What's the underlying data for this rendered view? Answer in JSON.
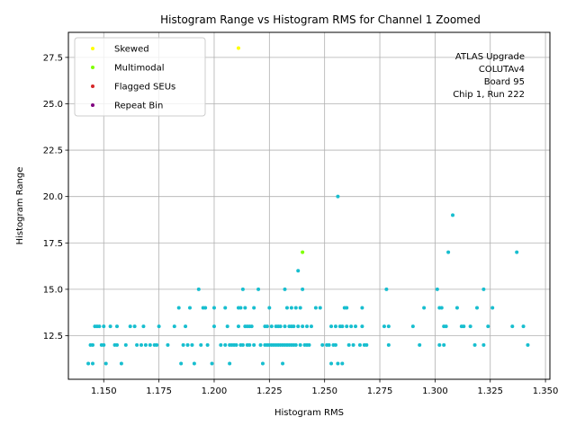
{
  "chart_data": {
    "type": "scatter",
    "title": "Histogram Range vs Histogram RMS for Channel 1 Zoomed",
    "xlabel": "Histogram RMS",
    "ylabel": "Histogram Range",
    "xlim": [
      1.134,
      1.352
    ],
    "ylim": [
      10.15,
      28.85
    ],
    "xticks": [
      "1.150",
      "1.175",
      "1.200",
      "1.225",
      "1.250",
      "1.275",
      "1.300",
      "1.325",
      "1.350"
    ],
    "xtick_values": [
      1.15,
      1.175,
      1.2,
      1.225,
      1.25,
      1.275,
      1.3,
      1.325,
      1.35
    ],
    "yticks": [
      "12.5",
      "15.0",
      "17.5",
      "20.0",
      "22.5",
      "25.0",
      "27.5"
    ],
    "ytick_values": [
      12.5,
      15.0,
      17.5,
      20.0,
      22.5,
      25.0,
      27.5
    ],
    "grid": true,
    "legend_position": "top-left",
    "annotation": [
      "ATLAS Upgrade",
      "COLUTAv4",
      "Board 95",
      "Chip 1, Run 222"
    ],
    "colors": {
      "main": "#17becf",
      "skewed": "#ffff00",
      "multimodal": "#7fff00",
      "flagged": "#d62728",
      "repeat": "#800080"
    },
    "series": [
      {
        "name": "",
        "color": "#17becf",
        "points": [
          [
            1.143,
            11
          ],
          [
            1.145,
            11
          ],
          [
            1.144,
            12
          ],
          [
            1.145,
            12
          ],
          [
            1.146,
            13
          ],
          [
            1.147,
            13
          ],
          [
            1.148,
            13
          ],
          [
            1.149,
            12
          ],
          [
            1.15,
            12
          ],
          [
            1.15,
            13
          ],
          [
            1.151,
            11
          ],
          [
            1.153,
            13
          ],
          [
            1.155,
            12
          ],
          [
            1.156,
            12
          ],
          [
            1.156,
            13
          ],
          [
            1.158,
            11
          ],
          [
            1.16,
            12
          ],
          [
            1.162,
            13
          ],
          [
            1.164,
            13
          ],
          [
            1.165,
            12
          ],
          [
            1.167,
            12
          ],
          [
            1.168,
            13
          ],
          [
            1.169,
            12
          ],
          [
            1.171,
            12
          ],
          [
            1.173,
            12
          ],
          [
            1.174,
            12
          ],
          [
            1.175,
            13
          ],
          [
            1.179,
            12
          ],
          [
            1.182,
            13
          ],
          [
            1.184,
            14
          ],
          [
            1.185,
            11
          ],
          [
            1.186,
            12
          ],
          [
            1.187,
            13
          ],
          [
            1.188,
            12
          ],
          [
            1.189,
            14
          ],
          [
            1.19,
            12
          ],
          [
            1.191,
            11
          ],
          [
            1.193,
            15
          ],
          [
            1.194,
            12
          ],
          [
            1.195,
            14
          ],
          [
            1.196,
            14
          ],
          [
            1.197,
            12
          ],
          [
            1.199,
            11
          ],
          [
            1.2,
            13
          ],
          [
            1.2,
            14
          ],
          [
            1.203,
            12
          ],
          [
            1.205,
            14
          ],
          [
            1.205,
            12
          ],
          [
            1.206,
            13
          ],
          [
            1.207,
            12
          ],
          [
            1.207,
            11
          ],
          [
            1.208,
            12
          ],
          [
            1.209,
            12
          ],
          [
            1.21,
            12
          ],
          [
            1.211,
            13
          ],
          [
            1.211,
            14
          ],
          [
            1.212,
            12
          ],
          [
            1.212,
            14
          ],
          [
            1.213,
            15
          ],
          [
            1.213,
            12
          ],
          [
            1.214,
            13
          ],
          [
            1.214,
            14
          ],
          [
            1.215,
            12
          ],
          [
            1.215,
            13
          ],
          [
            1.216,
            13
          ],
          [
            1.216,
            12
          ],
          [
            1.217,
            13
          ],
          [
            1.218,
            12
          ],
          [
            1.218,
            14
          ],
          [
            1.22,
            15
          ],
          [
            1.221,
            12
          ],
          [
            1.222,
            11
          ],
          [
            1.223,
            13
          ],
          [
            1.223,
            12
          ],
          [
            1.224,
            13
          ],
          [
            1.224,
            12
          ],
          [
            1.225,
            14
          ],
          [
            1.225,
            12
          ],
          [
            1.226,
            13
          ],
          [
            1.226,
            12
          ],
          [
            1.227,
            12
          ],
          [
            1.228,
            13
          ],
          [
            1.228,
            12
          ],
          [
            1.229,
            13
          ],
          [
            1.229,
            12
          ],
          [
            1.23,
            13
          ],
          [
            1.23,
            12
          ],
          [
            1.231,
            12
          ],
          [
            1.231,
            11
          ],
          [
            1.232,
            15
          ],
          [
            1.232,
            13
          ],
          [
            1.232,
            12
          ],
          [
            1.233,
            14
          ],
          [
            1.233,
            12
          ],
          [
            1.234,
            13
          ],
          [
            1.234,
            12
          ],
          [
            1.235,
            14
          ],
          [
            1.235,
            13
          ],
          [
            1.235,
            12
          ],
          [
            1.236,
            13
          ],
          [
            1.236,
            12
          ],
          [
            1.237,
            14
          ],
          [
            1.237,
            12
          ],
          [
            1.238,
            13
          ],
          [
            1.238,
            16
          ],
          [
            1.239,
            14
          ],
          [
            1.239,
            12
          ],
          [
            1.24,
            13
          ],
          [
            1.24,
            15
          ],
          [
            1.241,
            12
          ],
          [
            1.242,
            13
          ],
          [
            1.242,
            12
          ],
          [
            1.243,
            12
          ],
          [
            1.244,
            13
          ],
          [
            1.246,
            14
          ],
          [
            1.248,
            14
          ],
          [
            1.249,
            12
          ],
          [
            1.251,
            12
          ],
          [
            1.252,
            12
          ],
          [
            1.253,
            11
          ],
          [
            1.253,
            13
          ],
          [
            1.254,
            12
          ],
          [
            1.255,
            12
          ],
          [
            1.255,
            13
          ],
          [
            1.256,
            11
          ],
          [
            1.256,
            20
          ],
          [
            1.257,
            13
          ],
          [
            1.258,
            11
          ],
          [
            1.258,
            13
          ],
          [
            1.259,
            14
          ],
          [
            1.26,
            14
          ],
          [
            1.26,
            13
          ],
          [
            1.261,
            12
          ],
          [
            1.262,
            13
          ],
          [
            1.263,
            12
          ],
          [
            1.264,
            13
          ],
          [
            1.266,
            12
          ],
          [
            1.267,
            14
          ],
          [
            1.267,
            13
          ],
          [
            1.268,
            12
          ],
          [
            1.269,
            12
          ],
          [
            1.277,
            13
          ],
          [
            1.278,
            15
          ],
          [
            1.279,
            13
          ],
          [
            1.279,
            12
          ],
          [
            1.29,
            13
          ],
          [
            1.293,
            12
          ],
          [
            1.295,
            14
          ],
          [
            1.301,
            15
          ],
          [
            1.302,
            14
          ],
          [
            1.302,
            12
          ],
          [
            1.303,
            14
          ],
          [
            1.304,
            13
          ],
          [
            1.304,
            12
          ],
          [
            1.305,
            13
          ],
          [
            1.306,
            17
          ],
          [
            1.308,
            19
          ],
          [
            1.31,
            14
          ],
          [
            1.312,
            13
          ],
          [
            1.313,
            13
          ],
          [
            1.316,
            13
          ],
          [
            1.318,
            12
          ],
          [
            1.319,
            14
          ],
          [
            1.322,
            15
          ],
          [
            1.322,
            12
          ],
          [
            1.324,
            13
          ],
          [
            1.326,
            14
          ],
          [
            1.335,
            13
          ],
          [
            1.337,
            17
          ],
          [
            1.34,
            13
          ],
          [
            1.342,
            12
          ]
        ]
      },
      {
        "name": "Skewed",
        "color": "#ffff00",
        "points": [
          [
            1.211,
            28
          ]
        ]
      },
      {
        "name": "Multimodal",
        "color": "#7fff00",
        "points": [
          [
            1.24,
            17
          ]
        ]
      },
      {
        "name": "Flagged SEUs",
        "color": "#d62728",
        "points": []
      },
      {
        "name": "Repeat Bin",
        "color": "#800080",
        "points": []
      }
    ]
  }
}
